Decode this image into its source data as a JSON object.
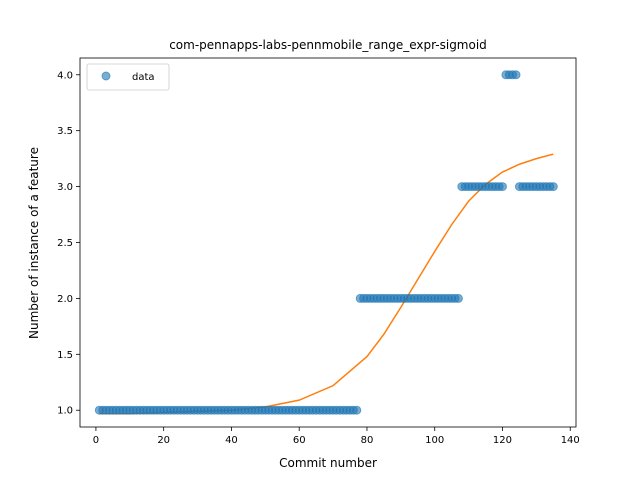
{
  "chart_data": {
    "type": "scatter",
    "title": "com-pennapps-labs-pennmobile_range_expr-sigmoid",
    "xlabel": "Commit number",
    "ylabel": "Number of instance of a feature",
    "xlim": [
      -4.7,
      141.7
    ],
    "ylim": [
      0.85,
      4.15
    ],
    "xticks": [
      0,
      20,
      40,
      60,
      80,
      100,
      120,
      140
    ],
    "yticks": [
      1.0,
      1.5,
      2.0,
      2.5,
      3.0,
      3.5,
      4.0
    ],
    "grid": false,
    "legend": {
      "position": "upper-left",
      "entries": [
        "data"
      ]
    },
    "colors": {
      "data": "#1f77b4",
      "fit": "#ff7f0e"
    },
    "series": [
      {
        "name": "data",
        "kind": "scatter",
        "segments": [
          {
            "x_from": 1,
            "x_to": 77,
            "y": 1.0
          },
          {
            "x_from": 78,
            "x_to": 107,
            "y": 2.0
          },
          {
            "x_from": 108,
            "x_to": 120,
            "y": 3.0
          },
          {
            "x_from": 121,
            "x_to": 124,
            "y": 4.0
          },
          {
            "x_from": 125,
            "x_to": 135,
            "y": 3.0
          }
        ]
      },
      {
        "kind": "line",
        "x": [
          1,
          10,
          20,
          30,
          40,
          50,
          60,
          70,
          80,
          85,
          90,
          95,
          100,
          105,
          110,
          115,
          120,
          125,
          130,
          135
        ],
        "y": [
          0.97,
          0.97,
          0.98,
          0.99,
          1.0,
          1.03,
          1.09,
          1.22,
          1.48,
          1.68,
          1.92,
          2.17,
          2.42,
          2.66,
          2.87,
          3.02,
          3.13,
          3.2,
          3.25,
          3.29
        ]
      }
    ]
  }
}
